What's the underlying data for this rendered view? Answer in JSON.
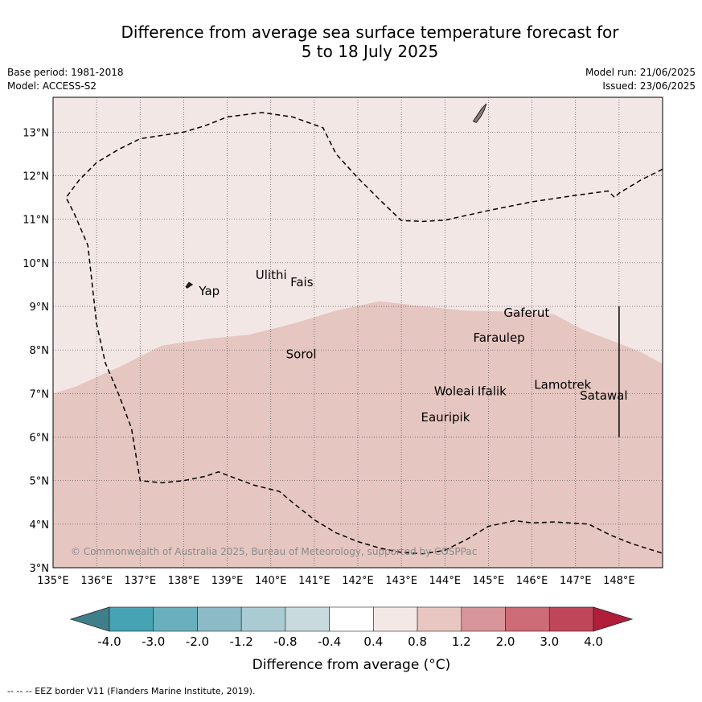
{
  "title": {
    "line1": "Difference from average sea surface temperature forecast for",
    "line2": "5 to 18 July 2025"
  },
  "meta_left": {
    "base_period": "Base period: 1981-2018",
    "model": "Model: ACCESS-S2"
  },
  "meta_right": {
    "model_run": "Model run: 21/06/2025",
    "issued": "Issued: 23/06/2025"
  },
  "map": {
    "lon_range": [
      135,
      149
    ],
    "lat_range": [
      3,
      13.8
    ],
    "lon_ticks": [
      "135°E",
      "136°E",
      "137°E",
      "138°E",
      "139°E",
      "140°E",
      "141°E",
      "142°E",
      "143°E",
      "144°E",
      "145°E",
      "146°E",
      "147°E",
      "148°E"
    ],
    "lat_ticks": [
      "3°N",
      "4°N",
      "5°N",
      "6°N",
      "7°N",
      "8°N",
      "9°N",
      "10°N",
      "11°N",
      "12°N",
      "13°N"
    ],
    "copyright": "© Commonwealth of Australia 2025, Bureau of Meteorology, supported by COSPPac",
    "places": [
      {
        "name": "Yap",
        "lon": 138.35,
        "lat": 9.35
      },
      {
        "name": "Ulithi",
        "lon": 139.65,
        "lat": 9.72
      },
      {
        "name": "Fais",
        "lon": 140.45,
        "lat": 9.55
      },
      {
        "name": "Gaferut",
        "lon": 145.35,
        "lat": 8.85
      },
      {
        "name": "Faraulep",
        "lon": 144.65,
        "lat": 8.28
      },
      {
        "name": "Sorol",
        "lon": 140.35,
        "lat": 7.9
      },
      {
        "name": "Woleai",
        "lon": 143.75,
        "lat": 7.05
      },
      {
        "name": "Ifalik",
        "lon": 144.75,
        "lat": 7.05
      },
      {
        "name": "Lamotrek",
        "lon": 146.05,
        "lat": 7.2
      },
      {
        "name": "Satawal",
        "lon": 147.1,
        "lat": 6.95
      },
      {
        "name": "Eauripik",
        "lon": 143.45,
        "lat": 6.45
      }
    ],
    "colors": {
      "category_04_08": "#f3e7e5",
      "category_08_12": "#e6c6c1",
      "land": "#8a7a78",
      "grid": "#555555"
    }
  },
  "colorbar": {
    "label": "Difference from average (°C)",
    "ticks": [
      "-4.0",
      "-3.0",
      "-2.0",
      "-1.2",
      "-0.8",
      "-0.4",
      "0.4",
      "0.8",
      "1.2",
      "2.0",
      "3.0",
      "4.0"
    ],
    "colors": [
      "#3f7f8a",
      "#46a3b4",
      "#6aafbd",
      "#8cbac6",
      "#aacbd2",
      "#c9dadf",
      "#ffffff",
      "#f4e8e6",
      "#e8c6c1",
      "#d8959b",
      "#cd6b76",
      "#bf4658",
      "#b01e3a"
    ]
  },
  "footer": "--  --  -- EEZ border V11 (Flanders Marine Institute, 2019)."
}
